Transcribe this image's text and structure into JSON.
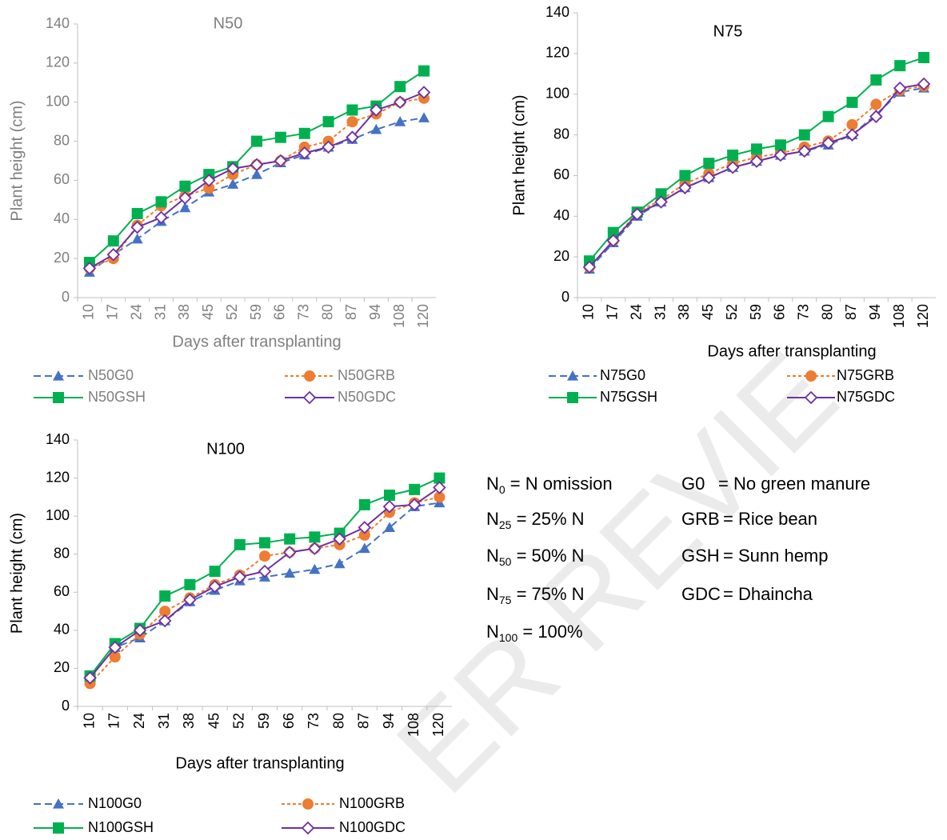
{
  "chart_data": [
    {
      "type": "line",
      "title": "N50",
      "xlabel": "Days after transplanting",
      "ylabel": "Plant height (cm)",
      "text_color": "#7f7f7f",
      "categories": [
        "10",
        "17",
        "24",
        "31",
        "38",
        "45",
        "52",
        "59",
        "66",
        "73",
        "80",
        "87",
        "94",
        "108",
        "120"
      ],
      "ylim": [
        0,
        140
      ],
      "yticks": [
        0,
        20,
        40,
        60,
        80,
        100,
        120,
        140
      ],
      "series": [
        {
          "name": "N50G0",
          "color": "#4472c4",
          "marker": "triangle",
          "line_style": "dashed",
          "values": [
            13,
            22,
            30,
            39,
            46,
            54,
            58,
            63,
            69,
            73,
            77,
            81,
            86,
            90,
            92
          ]
        },
        {
          "name": "N50GRB",
          "color": "#ed7d31",
          "marker": "circle",
          "line_style": "short-dash",
          "values": [
            15,
            20,
            37,
            47,
            52,
            56,
            63,
            68,
            70,
            77,
            80,
            90,
            94,
            100,
            102
          ]
        },
        {
          "name": "N50GSH",
          "color": "#00b050",
          "marker": "square",
          "line_style": "solid",
          "values": [
            18,
            29,
            43,
            49,
            57,
            63,
            67,
            80,
            82,
            84,
            90,
            96,
            98,
            108,
            116
          ]
        },
        {
          "name": "N50GDC",
          "color": "#7030a0",
          "marker": "diamond",
          "line_style": "solid",
          "values": [
            15,
            22,
            36,
            41,
            51,
            60,
            66,
            68,
            70,
            74,
            77,
            82,
            96,
            100,
            105
          ]
        }
      ]
    },
    {
      "type": "line",
      "title": "N75",
      "xlabel": "Days after transplanting",
      "ylabel": "Plant height (cm)",
      "text_color": "#000000",
      "categories": [
        "10",
        "17",
        "24",
        "31",
        "38",
        "45",
        "52",
        "59",
        "66",
        "73",
        "80",
        "87",
        "94",
        "108",
        "120"
      ],
      "ylim": [
        0,
        140
      ],
      "yticks": [
        0,
        20,
        40,
        60,
        80,
        100,
        120,
        140
      ],
      "series": [
        {
          "name": "N75G0",
          "color": "#4472c4",
          "marker": "triangle",
          "line_style": "dashed",
          "values": [
            14,
            27,
            40,
            47,
            54,
            59,
            64,
            67,
            70,
            72,
            75,
            80,
            90,
            101,
            103
          ]
        },
        {
          "name": "N75GRB",
          "color": "#ed7d31",
          "marker": "circle",
          "line_style": "short-dash",
          "values": [
            15,
            28,
            42,
            48,
            56,
            61,
            66,
            69,
            71,
            74,
            77,
            85,
            95,
            102,
            104
          ]
        },
        {
          "name": "N75GSH",
          "color": "#00b050",
          "marker": "square",
          "line_style": "solid",
          "values": [
            18,
            32,
            42,
            51,
            60,
            66,
            70,
            73,
            75,
            80,
            89,
            96,
            107,
            114,
            118
          ]
        },
        {
          "name": "N75GDC",
          "color": "#7030a0",
          "marker": "diamond",
          "line_style": "solid",
          "values": [
            15,
            28,
            41,
            47,
            54,
            59,
            64,
            67,
            70,
            72,
            76,
            80,
            89,
            103,
            105
          ]
        }
      ]
    },
    {
      "type": "line",
      "title": "N100",
      "xlabel": "Days after transplanting",
      "ylabel": "Plant height (cm)",
      "text_color": "#000000",
      "categories": [
        "10",
        "17",
        "24",
        "31",
        "38",
        "45",
        "52",
        "59",
        "66",
        "73",
        "80",
        "87",
        "94",
        "108",
        "120"
      ],
      "ylim": [
        0,
        140
      ],
      "yticks": [
        0,
        20,
        40,
        60,
        80,
        100,
        120,
        140
      ],
      "series": [
        {
          "name": "N100G0",
          "color": "#4472c4",
          "marker": "triangle",
          "line_style": "dashed",
          "values": [
            15,
            31,
            36,
            45,
            55,
            61,
            66,
            68,
            70,
            72,
            75,
            83,
            94,
            105,
            107
          ]
        },
        {
          "name": "N100GRB",
          "color": "#ed7d31",
          "marker": "circle",
          "line_style": "short-dash",
          "values": [
            12,
            26,
            38,
            50,
            57,
            64,
            69,
            79,
            81,
            83,
            85,
            90,
            102,
            107,
            110
          ]
        },
        {
          "name": "N100GSH",
          "color": "#00b050",
          "marker": "square",
          "line_style": "solid",
          "values": [
            16,
            33,
            41,
            58,
            64,
            71,
            85,
            86,
            88,
            89,
            91,
            106,
            111,
            114,
            120
          ]
        },
        {
          "name": "N100GDC",
          "color": "#7030a0",
          "marker": "diamond",
          "line_style": "solid",
          "values": [
            15,
            31,
            40,
            45,
            56,
            63,
            68,
            71,
            81,
            83,
            88,
            94,
            105,
            106,
            115
          ]
        }
      ]
    }
  ],
  "notes": {
    "nitrogen": [
      {
        "symbol": "N",
        "subscript": "0",
        "text": " = N omission"
      },
      {
        "symbol": "N",
        "subscript": "25",
        "text": " = 25% N"
      },
      {
        "symbol": "N",
        "subscript": "50",
        "text": " = 50% N"
      },
      {
        "symbol": "N",
        "subscript": "75",
        "text": " = 75% N"
      },
      {
        "symbol": "N",
        "subscript": "100",
        "text": " = 100%"
      }
    ],
    "green_manure": [
      {
        "symbol": "G0",
        "text": "= No green manure"
      },
      {
        "symbol": "GRB",
        "text": "= Rice bean"
      },
      {
        "symbol": "GSH",
        "text": "= Sunn hemp"
      },
      {
        "symbol": "GDC",
        "text": "= Dhaincha"
      }
    ]
  },
  "watermark": "ER REVIE"
}
